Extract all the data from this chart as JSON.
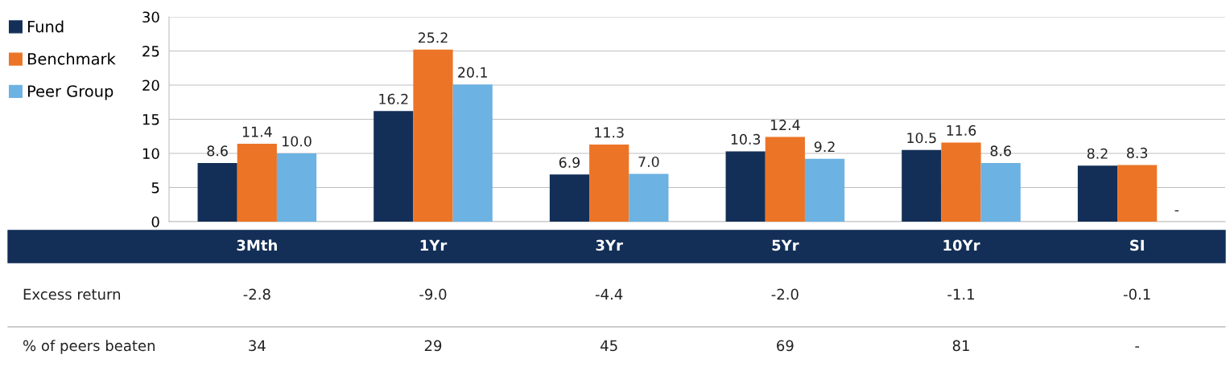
{
  "chart_data": [
    {
      "type": "bar",
      "categories": [
        "3Mth",
        "1Yr",
        "3Yr",
        "5Yr",
        "10Yr",
        "SI"
      ],
      "series": [
        {
          "name": "Fund",
          "color": "#132f57",
          "values": [
            8.6,
            16.2,
            6.9,
            10.3,
            10.5,
            8.2
          ],
          "value_labels": [
            "8.6",
            "16.2",
            "6.9",
            "10.3",
            "10.5",
            "8.2"
          ]
        },
        {
          "name": "Benchmark",
          "color": "#ec7426",
          "values": [
            11.4,
            25.2,
            11.3,
            12.4,
            11.6,
            8.3
          ],
          "value_labels": [
            "11.4",
            "25.2",
            "11.3",
            "12.4",
            "11.6",
            "8.3"
          ]
        },
        {
          "name": "Peer Group",
          "color": "#6cb2e2",
          "values": [
            10.0,
            20.1,
            7.0,
            9.2,
            8.6,
            null
          ],
          "value_labels": [
            "10.0",
            "20.1",
            "7.0",
            "9.2",
            "8.6",
            "-"
          ]
        }
      ],
      "ylim": [
        0,
        30
      ],
      "yticks": [
        0,
        5,
        10,
        15,
        20,
        25,
        30
      ],
      "grid": "y",
      "legend": "left"
    },
    {
      "type": "other",
      "y_categories": [
        "Excess return",
        "% of peers beaten"
      ],
      "cell_labels": [
        [
          "-2.8",
          "-9.0",
          "-4.4",
          "-2.0",
          "-1.1",
          "-0.1"
        ],
        [
          "34",
          "29",
          "45",
          "69",
          "81",
          "-"
        ]
      ]
    }
  ]
}
